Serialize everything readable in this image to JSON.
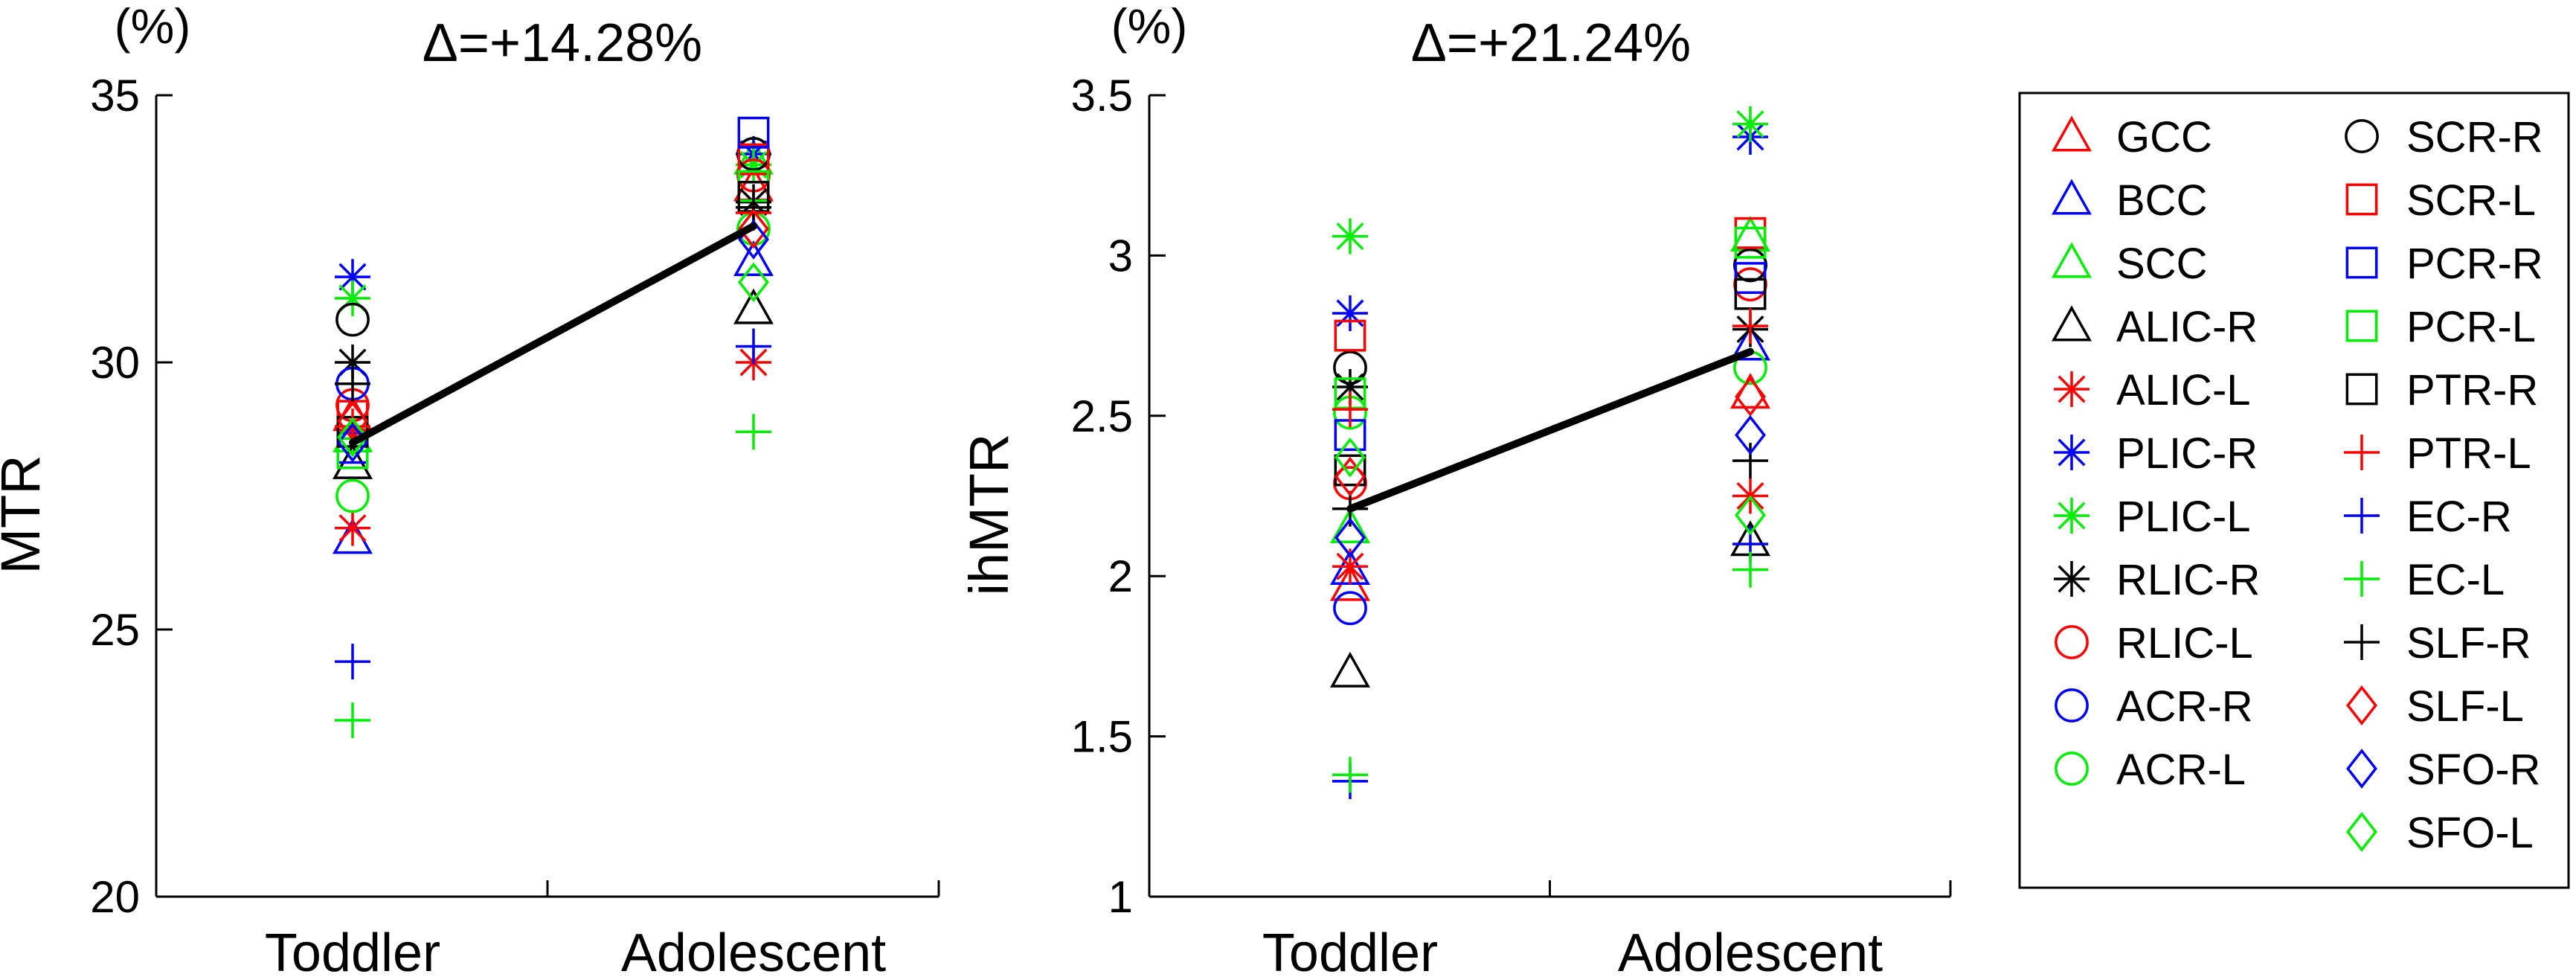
{
  "chart_data": [
    {
      "type": "scatter",
      "title": "Δ=+14.28%",
      "unit_label": "(%)",
      "ylabel": "MTR",
      "xlabel": "",
      "categories": [
        "Toddler",
        "Adolescent"
      ],
      "ylim": [
        20,
        35
      ],
      "yticks": [
        20,
        25,
        30,
        35
      ],
      "mean_line": [
        28.5,
        32.55
      ],
      "grid": false,
      "series": [
        {
          "name": "GCC",
          "values": [
            29.0,
            33.3
          ]
        },
        {
          "name": "BCC",
          "values": [
            26.7,
            31.9
          ]
        },
        {
          "name": "SCC",
          "values": [
            28.6,
            33.8
          ]
        },
        {
          "name": "ALIC-R",
          "values": [
            28.1,
            31.0
          ]
        },
        {
          "name": "ALIC-L",
          "values": [
            26.9,
            30.0
          ]
        },
        {
          "name": "PLIC-R",
          "values": [
            31.6,
            33.9
          ]
        },
        {
          "name": "PLIC-L",
          "values": [
            31.2,
            33.7
          ]
        },
        {
          "name": "RLIC-R",
          "values": [
            30.0,
            33.0
          ]
        },
        {
          "name": "RLIC-L",
          "values": [
            29.2,
            33.5
          ]
        },
        {
          "name": "ACR-R",
          "values": [
            29.6,
            33.9
          ]
        },
        {
          "name": "ACR-L",
          "values": [
            27.5,
            32.5
          ]
        },
        {
          "name": "SCR-R",
          "values": [
            30.8,
            33.9
          ]
        },
        {
          "name": "SCR-L",
          "values": [
            29.0,
            33.8
          ]
        },
        {
          "name": "PCR-R",
          "values": [
            28.4,
            34.3
          ]
        },
        {
          "name": "PCR-L",
          "values": [
            28.3,
            33.3
          ]
        },
        {
          "name": "PTR-R",
          "values": [
            28.7,
            33.1
          ]
        },
        {
          "name": "PTR-L",
          "values": [
            28.8,
            32.8
          ]
        },
        {
          "name": "EC-R",
          "values": [
            24.4,
            30.3
          ]
        },
        {
          "name": "EC-L",
          "values": [
            23.3,
            28.7
          ]
        },
        {
          "name": "SLF-R",
          "values": [
            29.6,
            32.9
          ]
        },
        {
          "name": "SLF-L",
          "values": [
            28.9,
            32.5
          ]
        },
        {
          "name": "SFO-R",
          "values": [
            28.5,
            32.3
          ]
        },
        {
          "name": "SFO-L",
          "values": [
            28.6,
            31.5
          ]
        }
      ]
    },
    {
      "type": "scatter",
      "title": "Δ=+21.24%",
      "unit_label": "(%)",
      "ylabel": "ihMTR",
      "xlabel": "",
      "categories": [
        "Toddler",
        "Adolescent"
      ],
      "ylim": [
        1,
        3.5
      ],
      "yticks": [
        1,
        1.5,
        2,
        2.5,
        3,
        3.5
      ],
      "ytick_labels": [
        "1",
        "1.5",
        "2",
        "2.5",
        "3",
        "3.5"
      ],
      "mean_line": [
        2.21,
        2.7
      ],
      "grid": false,
      "series": [
        {
          "name": "GCC",
          "values": [
            1.97,
            2.57
          ]
        },
        {
          "name": "BCC",
          "values": [
            2.02,
            2.72
          ]
        },
        {
          "name": "SCC",
          "values": [
            2.15,
            3.06
          ]
        },
        {
          "name": "ALIC-R",
          "values": [
            1.7,
            2.11
          ]
        },
        {
          "name": "ALIC-L",
          "values": [
            2.03,
            2.25
          ]
        },
        {
          "name": "PLIC-R",
          "values": [
            2.82,
            3.37
          ]
        },
        {
          "name": "PLIC-L",
          "values": [
            3.06,
            3.41
          ]
        },
        {
          "name": "RLIC-R",
          "values": [
            2.59,
            2.77
          ]
        },
        {
          "name": "RLIC-L",
          "values": [
            2.29,
            2.91
          ]
        },
        {
          "name": "ACR-R",
          "values": [
            1.9,
            2.97
          ]
        },
        {
          "name": "ACR-L",
          "values": [
            2.51,
            2.65
          ]
        },
        {
          "name": "SCR-R",
          "values": [
            2.65,
            2.97
          ]
        },
        {
          "name": "SCR-L",
          "values": [
            2.75,
            3.07
          ]
        },
        {
          "name": "PCR-R",
          "values": [
            2.44,
            2.93
          ]
        },
        {
          "name": "PCR-L",
          "values": [
            2.57,
            3.04
          ]
        },
        {
          "name": "PTR-R",
          "values": [
            2.33,
            2.88
          ]
        },
        {
          "name": "PTR-L",
          "values": [
            2.52,
            2.78
          ]
        },
        {
          "name": "EC-R",
          "values": [
            1.36,
            2.1
          ]
        },
        {
          "name": "EC-L",
          "values": [
            1.38,
            2.02
          ]
        },
        {
          "name": "SLF-R",
          "values": [
            2.21,
            2.36
          ]
        },
        {
          "name": "SLF-L",
          "values": [
            2.31,
            2.56
          ]
        },
        {
          "name": "SFO-R",
          "values": [
            2.12,
            2.44
          ]
        },
        {
          "name": "SFO-L",
          "values": [
            2.37,
            2.19
          ]
        }
      ]
    }
  ],
  "legend": {
    "position": "right",
    "entries": [
      {
        "name": "GCC",
        "color": "#ff0000",
        "marker": "triangle"
      },
      {
        "name": "BCC",
        "color": "#0000ff",
        "marker": "triangle"
      },
      {
        "name": "SCC",
        "color": "#00ee00",
        "marker": "triangle"
      },
      {
        "name": "ALIC-R",
        "color": "#000000",
        "marker": "triangle"
      },
      {
        "name": "ALIC-L",
        "color": "#ff0000",
        "marker": "asterisk"
      },
      {
        "name": "PLIC-R",
        "color": "#0000ff",
        "marker": "asterisk"
      },
      {
        "name": "PLIC-L",
        "color": "#00ee00",
        "marker": "asterisk"
      },
      {
        "name": "RLIC-R",
        "color": "#000000",
        "marker": "asterisk"
      },
      {
        "name": "RLIC-L",
        "color": "#ff0000",
        "marker": "circle"
      },
      {
        "name": "ACR-R",
        "color": "#0000ff",
        "marker": "circle"
      },
      {
        "name": "ACR-L",
        "color": "#00ee00",
        "marker": "circle"
      },
      {
        "name": "SCR-R",
        "color": "#000000",
        "marker": "circle"
      },
      {
        "name": "SCR-L",
        "color": "#ff0000",
        "marker": "square"
      },
      {
        "name": "PCR-R",
        "color": "#0000ff",
        "marker": "square"
      },
      {
        "name": "PCR-L",
        "color": "#00ee00",
        "marker": "square"
      },
      {
        "name": "PTR-R",
        "color": "#000000",
        "marker": "square"
      },
      {
        "name": "PTR-L",
        "color": "#ff0000",
        "marker": "plus"
      },
      {
        "name": "EC-R",
        "color": "#0000ff",
        "marker": "plus"
      },
      {
        "name": "EC-L",
        "color": "#00ee00",
        "marker": "plus"
      },
      {
        "name": "SLF-R",
        "color": "#000000",
        "marker": "plus"
      },
      {
        "name": "SLF-L",
        "color": "#ff0000",
        "marker": "diamond"
      },
      {
        "name": "SFO-R",
        "color": "#0000ff",
        "marker": "diamond"
      },
      {
        "name": "SFO-L",
        "color": "#00ee00",
        "marker": "diamond"
      }
    ]
  }
}
